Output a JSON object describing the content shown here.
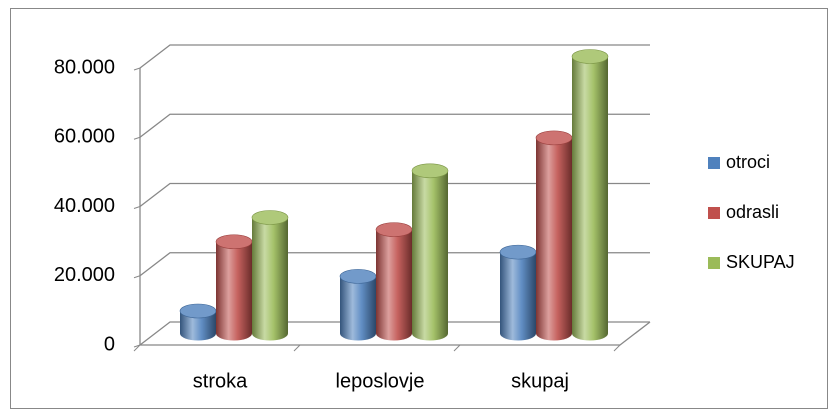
{
  "chart_data": {
    "type": "bar3d",
    "categories": [
      "stroka",
      "leposlovje",
      "skupaj"
    ],
    "series": [
      {
        "name": "otroci",
        "color": "#4f81bd",
        "values": [
          6500,
          16500,
          23500
        ]
      },
      {
        "name": "odrasli",
        "color": "#c0504d",
        "values": [
          26500,
          30000,
          56500
        ]
      },
      {
        "name": "SKUPAJ",
        "color": "#9bbb59",
        "values": [
          33500,
          47000,
          80000
        ]
      }
    ],
    "ylim": [
      0,
      80000
    ],
    "yticks": [
      0,
      {
        "value": 20000,
        "label": "20.000"
      },
      {
        "value": 40000,
        "label": "40.000"
      },
      {
        "value": 60000,
        "label": "60.000"
      },
      {
        "value": 80000,
        "label": "80.000"
      }
    ],
    "grid": true,
    "legend": "right"
  }
}
